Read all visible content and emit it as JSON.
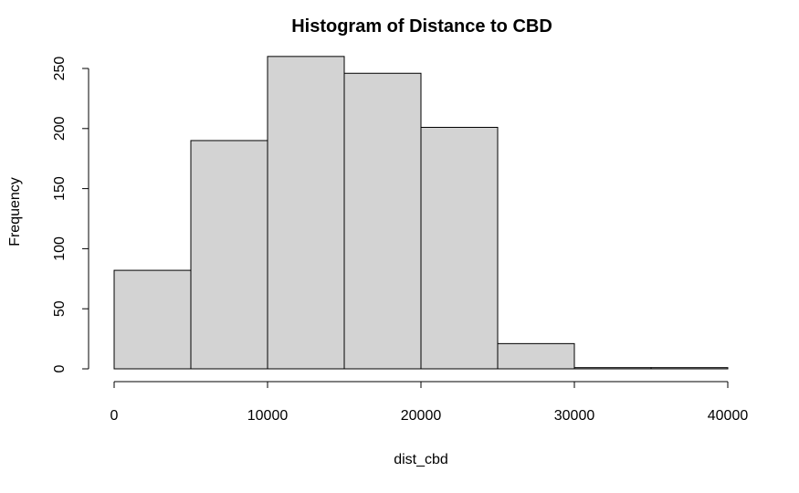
{
  "chart_data": {
    "type": "bar",
    "title": "Histogram of Distance to CBD",
    "xlabel": "dist_cbd",
    "ylabel": "Frequency",
    "bins": [
      {
        "start": 0,
        "end": 5000,
        "value": 82
      },
      {
        "start": 5000,
        "end": 10000,
        "value": 190
      },
      {
        "start": 10000,
        "end": 15000,
        "value": 260
      },
      {
        "start": 15000,
        "end": 20000,
        "value": 246
      },
      {
        "start": 20000,
        "end": 25000,
        "value": 201
      },
      {
        "start": 25000,
        "end": 30000,
        "value": 21
      },
      {
        "start": 30000,
        "end": 35000,
        "value": 1
      },
      {
        "start": 35000,
        "end": 40000,
        "value": 1
      }
    ],
    "xlim": [
      0,
      40000
    ],
    "ylim": [
      0,
      250
    ],
    "x_ticks": [
      "0",
      "10000",
      "20000",
      "30000",
      "40000"
    ],
    "y_ticks": [
      "0",
      "50",
      "100",
      "150",
      "200",
      "250"
    ],
    "grid": false,
    "bar_color": "#d3d3d3",
    "edge_color": "#000000"
  }
}
